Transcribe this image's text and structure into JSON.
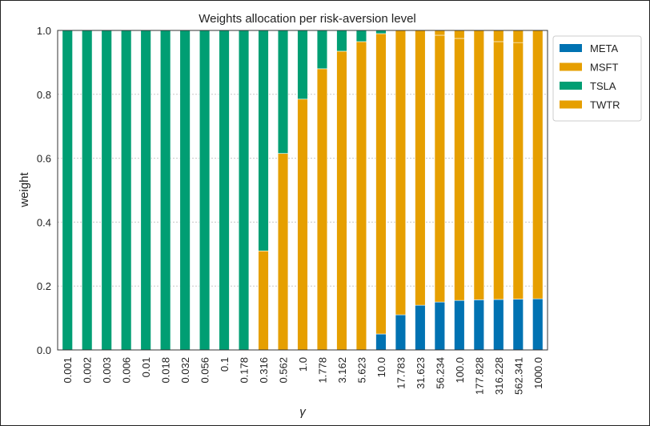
{
  "chart_data": {
    "type": "bar",
    "stacked": true,
    "title": "Weights allocation per risk-aversion level",
    "xlabel": "γ",
    "ylabel": "weight",
    "ylim": [
      0,
      1
    ],
    "yticks": [
      "0.0",
      "0.2",
      "0.4",
      "0.6",
      "0.8",
      "1.0"
    ],
    "grid": true,
    "legend_position": "right",
    "categories": [
      "0.001",
      "0.002",
      "0.003",
      "0.006",
      "0.01",
      "0.018",
      "0.032",
      "0.056",
      "0.1",
      "0.178",
      "0.316",
      "0.562",
      "1.0",
      "1.778",
      "3.162",
      "5.623",
      "10.0",
      "17.783",
      "31.623",
      "56.234",
      "100.0",
      "177.828",
      "316.228",
      "562.341",
      "1000.0"
    ],
    "series": [
      {
        "name": "META",
        "color": "#0072b2",
        "values": [
          0,
          0,
          0,
          0,
          0,
          0,
          0,
          0,
          0,
          0,
          0,
          0,
          0,
          0,
          0,
          0,
          0.05,
          0.11,
          0.14,
          0.15,
          0.155,
          0.157,
          0.158,
          0.159,
          0.16
        ]
      },
      {
        "name": "MSFT",
        "color": "#e69f00",
        "values": [
          0,
          0,
          0,
          0,
          0,
          0,
          0,
          0,
          0,
          0,
          0.31,
          0.615,
          0.785,
          0.88,
          0.935,
          0.965,
          0.94,
          0.89,
          0.86,
          0.835,
          0.82,
          0.843,
          0.807,
          0.803,
          0.84
        ]
      },
      {
        "name": "TSLA",
        "color": "#009e73",
        "values": [
          1,
          1,
          1,
          1,
          1,
          1,
          1,
          1,
          1,
          1,
          0.69,
          0.385,
          0.215,
          0.12,
          0.065,
          0.035,
          0.01,
          0,
          0,
          0,
          0,
          0,
          0,
          0,
          0
        ]
      },
      {
        "name": "TWTR",
        "color": "#e69f00",
        "values": [
          0,
          0,
          0,
          0,
          0,
          0,
          0,
          0,
          0,
          0,
          0,
          0,
          0,
          0,
          0,
          0,
          0,
          0,
          0,
          0.015,
          0.025,
          0,
          0.035,
          0.038,
          0
        ]
      }
    ]
  }
}
